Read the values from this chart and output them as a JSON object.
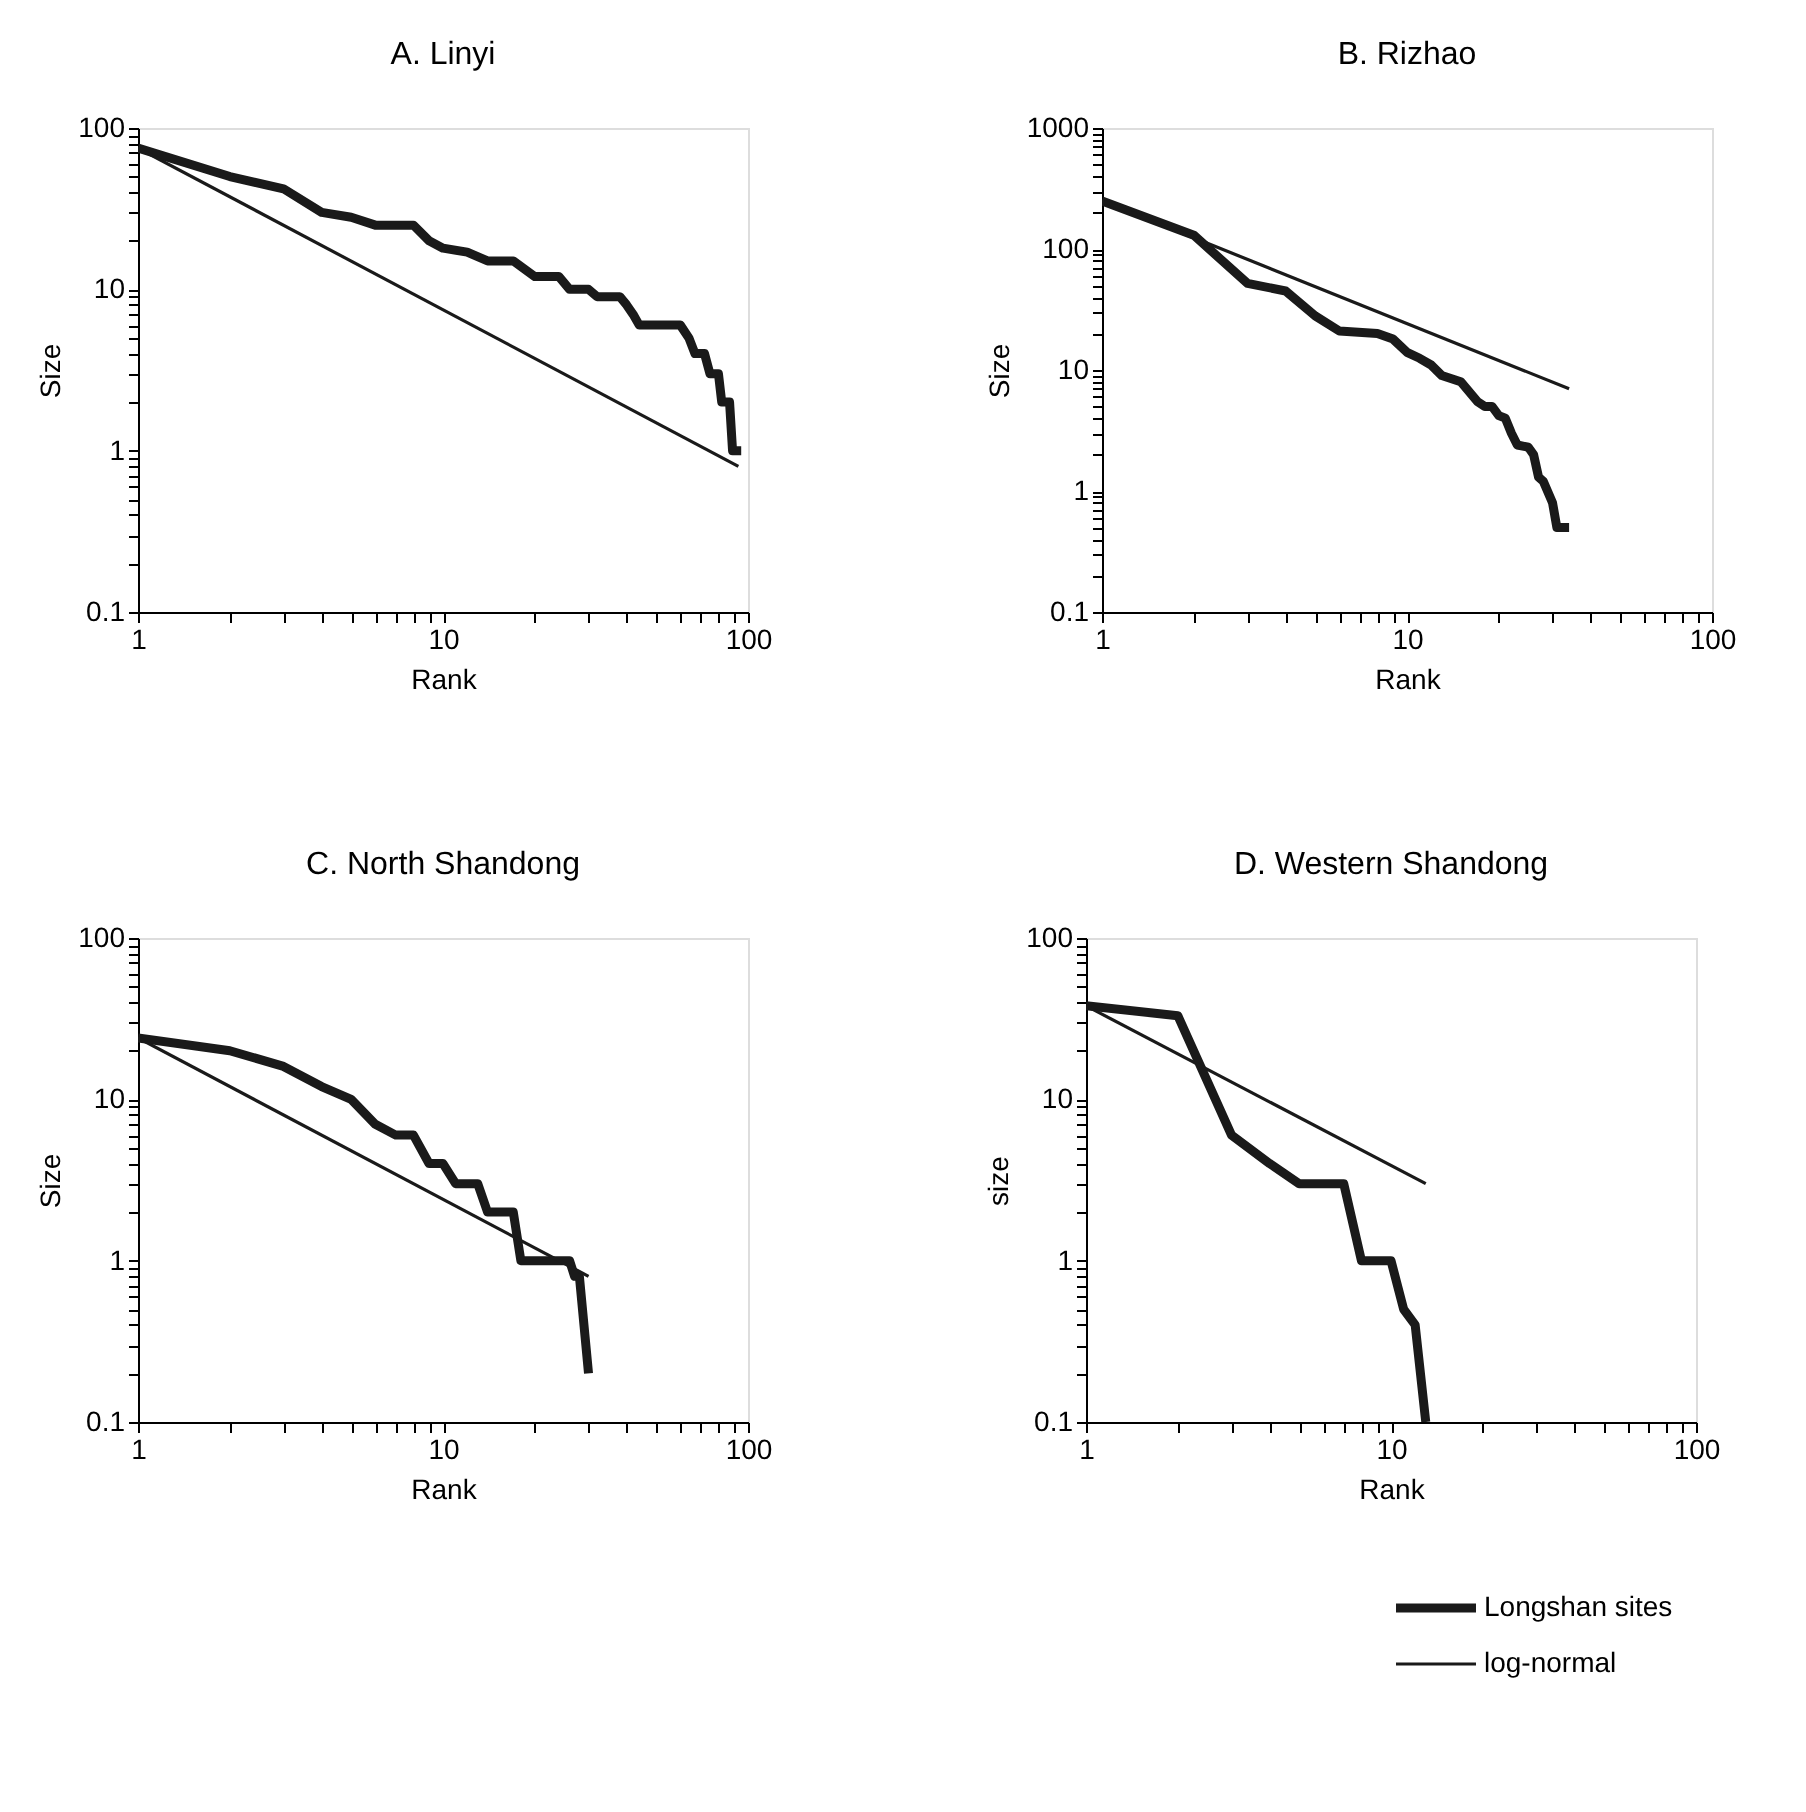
{
  "chart_data": [
    {
      "type": "line",
      "title": "A. Linyi",
      "xlabel": "Rank",
      "ylabel": "Size",
      "log": "xy",
      "xlim": [
        1,
        100
      ],
      "ylim": [
        0.1,
        100
      ],
      "xticks": [
        1,
        {
          "value": 2,
          "label": null
        },
        {
          "value": 3,
          "label": null
        },
        {
          "value": 4,
          "label": null
        },
        {
          "value": 5,
          "label": null
        },
        {
          "value": 6,
          "label": null
        },
        {
          "value": 7,
          "label": null
        },
        {
          "value": 8,
          "label": null
        },
        {
          "value": 9,
          "label": null
        },
        10,
        {
          "value": 20,
          "label": null
        },
        {
          "value": 30,
          "label": null
        },
        {
          "value": 40,
          "label": null
        },
        {
          "value": 50,
          "label": null
        },
        {
          "value": 60,
          "label": null
        },
        {
          "value": 70,
          "label": null
        },
        {
          "value": 80,
          "label": null
        },
        {
          "value": 90,
          "label": null
        },
        100
      ],
      "yticks": [
        0.1,
        {
          "value": 0.2,
          "label": null
        },
        {
          "value": 0.3,
          "label": null
        },
        {
          "value": 0.4,
          "label": null
        },
        {
          "value": 0.5,
          "label": null
        },
        {
          "value": 0.6,
          "label": null
        },
        {
          "value": 0.7,
          "label": null
        },
        {
          "value": 0.8,
          "label": null
        },
        {
          "value": 0.9,
          "label": null
        },
        1,
        {
          "value": 2,
          "label": null
        },
        {
          "value": 3,
          "label": null
        },
        {
          "value": 4,
          "label": null
        },
        {
          "value": 5,
          "label": null
        },
        {
          "value": 6,
          "label": null
        },
        {
          "value": 7,
          "label": null
        },
        {
          "value": 8,
          "label": null
        },
        {
          "value": 9,
          "label": null
        },
        10,
        {
          "value": 20,
          "label": null
        },
        {
          "value": 30,
          "label": null
        },
        {
          "value": 40,
          "label": null
        },
        {
          "value": 50,
          "label": null
        },
        {
          "value": 60,
          "label": null
        },
        {
          "value": 70,
          "label": null
        },
        {
          "value": 80,
          "label": null
        },
        {
          "value": 90,
          "label": null
        },
        100
      ],
      "series": [
        {
          "color": "#1a1a1a",
          "x": [
            1,
            2,
            3,
            4,
            5,
            6,
            8,
            9,
            10,
            12,
            14,
            17,
            20,
            24,
            26,
            30,
            32,
            38,
            40,
            42,
            44,
            60,
            64,
            67,
            72,
            75,
            80,
            82,
            87,
            89,
            95
          ],
          "values": [
            75,
            50,
            42,
            30,
            28,
            25,
            25,
            20,
            18,
            17,
            15,
            15,
            12,
            12,
            10,
            10,
            9,
            9,
            8,
            7,
            6,
            6,
            5,
            4,
            4,
            3,
            3,
            2,
            2,
            1,
            1
          ]
        },
        {
          "color": "#1a1a1a",
          "x": [
            1,
            93
          ],
          "values": [
            75,
            0.8
          ]
        }
      ]
    },
    {
      "type": "line",
      "title": "B. Rizhao",
      "xlabel": "Rank",
      "ylabel": "Size",
      "log": "xy",
      "xlim": [
        1,
        100
      ],
      "ylim": [
        0.1,
        1000
      ],
      "xticks": [
        1,
        {
          "value": 2,
          "label": null
        },
        {
          "value": 3,
          "label": null
        },
        {
          "value": 4,
          "label": null
        },
        {
          "value": 5,
          "label": null
        },
        {
          "value": 6,
          "label": null
        },
        {
          "value": 7,
          "label": null
        },
        {
          "value": 8,
          "label": null
        },
        {
          "value": 9,
          "label": null
        },
        10,
        {
          "value": 20,
          "label": null
        },
        {
          "value": 30,
          "label": null
        },
        {
          "value": 40,
          "label": null
        },
        {
          "value": 50,
          "label": null
        },
        {
          "value": 60,
          "label": null
        },
        {
          "value": 70,
          "label": null
        },
        {
          "value": 80,
          "label": null
        },
        {
          "value": 90,
          "label": null
        },
        100
      ],
      "yticks": [
        0.1,
        {
          "value": 0.2,
          "label": null
        },
        {
          "value": 0.3,
          "label": null
        },
        {
          "value": 0.4,
          "label": null
        },
        {
          "value": 0.5,
          "label": null
        },
        {
          "value": 0.6,
          "label": null
        },
        {
          "value": 0.7,
          "label": null
        },
        {
          "value": 0.8,
          "label": null
        },
        {
          "value": 0.9,
          "label": null
        },
        1,
        {
          "value": 2,
          "label": null
        },
        {
          "value": 3,
          "label": null
        },
        {
          "value": 4,
          "label": null
        },
        {
          "value": 5,
          "label": null
        },
        {
          "value": 6,
          "label": null
        },
        {
          "value": 7,
          "label": null
        },
        {
          "value": 8,
          "label": null
        },
        {
          "value": 9,
          "label": null
        },
        10,
        {
          "value": 20,
          "label": null
        },
        {
          "value": 30,
          "label": null
        },
        {
          "value": 40,
          "label": null
        },
        {
          "value": 50,
          "label": null
        },
        {
          "value": 60,
          "label": null
        },
        {
          "value": 70,
          "label": null
        },
        {
          "value": 80,
          "label": null
        },
        {
          "value": 90,
          "label": null
        },
        100,
        {
          "value": 200,
          "label": null
        },
        {
          "value": 300,
          "label": null
        },
        {
          "value": 400,
          "label": null
        },
        {
          "value": 500,
          "label": null
        },
        {
          "value": 600,
          "label": null
        },
        {
          "value": 700,
          "label": null
        },
        {
          "value": 800,
          "label": null
        },
        {
          "value": 900,
          "label": null
        },
        1000
      ],
      "series": [
        {
          "color": "#1a1a1a",
          "x": [
            1,
            2,
            3,
            4,
            5,
            6,
            8,
            9,
            10,
            11,
            12,
            13,
            15,
            17,
            18,
            19,
            20,
            21,
            22,
            23,
            25,
            26,
            27,
            28,
            30,
            31,
            34
          ],
          "values": [
            250,
            130,
            52,
            45,
            28,
            21,
            20,
            18,
            14,
            12.5,
            11,
            9,
            8,
            5.5,
            5,
            5,
            4.2,
            4,
            3,
            2.4,
            2.3,
            2,
            1.3,
            1.2,
            0.8,
            0.5,
            0.5
          ]
        },
        {
          "color": "#1a1a1a",
          "x": [
            1,
            34
          ],
          "values": [
            250,
            7
          ]
        }
      ]
    },
    {
      "type": "line",
      "title": "C. North Shandong",
      "xlabel": "Rank",
      "ylabel": "Size",
      "log": "xy",
      "xlim": [
        1,
        100
      ],
      "ylim": [
        0.1,
        100
      ],
      "xticks": [
        1,
        {
          "value": 2,
          "label": null
        },
        {
          "value": 3,
          "label": null
        },
        {
          "value": 4,
          "label": null
        },
        {
          "value": 5,
          "label": null
        },
        {
          "value": 6,
          "label": null
        },
        {
          "value": 7,
          "label": null
        },
        {
          "value": 8,
          "label": null
        },
        {
          "value": 9,
          "label": null
        },
        10,
        {
          "value": 20,
          "label": null
        },
        {
          "value": 30,
          "label": null
        },
        {
          "value": 40,
          "label": null
        },
        {
          "value": 50,
          "label": null
        },
        {
          "value": 60,
          "label": null
        },
        {
          "value": 70,
          "label": null
        },
        {
          "value": 80,
          "label": null
        },
        {
          "value": 90,
          "label": null
        },
        100
      ],
      "yticks": [
        0.1,
        {
          "value": 0.2,
          "label": null
        },
        {
          "value": 0.3,
          "label": null
        },
        {
          "value": 0.4,
          "label": null
        },
        {
          "value": 0.5,
          "label": null
        },
        {
          "value": 0.6,
          "label": null
        },
        {
          "value": 0.7,
          "label": null
        },
        {
          "value": 0.8,
          "label": null
        },
        {
          "value": 0.9,
          "label": null
        },
        1,
        {
          "value": 2,
          "label": null
        },
        {
          "value": 3,
          "label": null
        },
        {
          "value": 4,
          "label": null
        },
        {
          "value": 5,
          "label": null
        },
        {
          "value": 6,
          "label": null
        },
        {
          "value": 7,
          "label": null
        },
        {
          "value": 8,
          "label": null
        },
        {
          "value": 9,
          "label": null
        },
        10,
        {
          "value": 20,
          "label": null
        },
        {
          "value": 30,
          "label": null
        },
        {
          "value": 40,
          "label": null
        },
        {
          "value": 50,
          "label": null
        },
        {
          "value": 60,
          "label": null
        },
        {
          "value": 70,
          "label": null
        },
        {
          "value": 80,
          "label": null
        },
        {
          "value": 90,
          "label": null
        },
        100
      ],
      "series": [
        {
          "color": "#1a1a1a",
          "x": [
            1,
            2,
            3,
            4,
            5,
            6,
            7,
            8,
            9,
            10,
            11,
            13,
            14,
            17,
            18,
            26,
            27,
            28,
            30
          ],
          "values": [
            24,
            20,
            16,
            12,
            10,
            7,
            6,
            6,
            4,
            4,
            3,
            3,
            2,
            2,
            1,
            1,
            0.8,
            0.8,
            0.2
          ]
        },
        {
          "color": "#1a1a1a",
          "x": [
            1,
            30
          ],
          "values": [
            24,
            0.8
          ]
        }
      ]
    },
    {
      "type": "line",
      "title": "D. Western Shandong",
      "xlabel": "Rank",
      "ylabel": "size",
      "log": "xy",
      "xlim": [
        1,
        100
      ],
      "ylim": [
        0.1,
        100
      ],
      "legend": "bottom right",
      "xticks": [
        1,
        {
          "value": 2,
          "label": null
        },
        {
          "value": 3,
          "label": null
        },
        {
          "value": 4,
          "label": null
        },
        {
          "value": 5,
          "label": null
        },
        {
          "value": 6,
          "label": null
        },
        {
          "value": 7,
          "label": null
        },
        {
          "value": 8,
          "label": null
        },
        {
          "value": 9,
          "label": null
        },
        10,
        {
          "value": 20,
          "label": null
        },
        {
          "value": 30,
          "label": null
        },
        {
          "value": 40,
          "label": null
        },
        {
          "value": 50,
          "label": null
        },
        {
          "value": 60,
          "label": null
        },
        {
          "value": 70,
          "label": null
        },
        {
          "value": 80,
          "label": null
        },
        {
          "value": 90,
          "label": null
        },
        100
      ],
      "yticks": [
        0.1,
        {
          "value": 0.2,
          "label": null
        },
        {
          "value": 0.3,
          "label": null
        },
        {
          "value": 0.4,
          "label": null
        },
        {
          "value": 0.5,
          "label": null
        },
        {
          "value": 0.6,
          "label": null
        },
        {
          "value": 0.7,
          "label": null
        },
        {
          "value": 0.8,
          "label": null
        },
        {
          "value": 0.9,
          "label": null
        },
        1,
        {
          "value": 2,
          "label": null
        },
        {
          "value": 3,
          "label": null
        },
        {
          "value": 4,
          "label": null
        },
        {
          "value": 5,
          "label": null
        },
        {
          "value": 6,
          "label": null
        },
        {
          "value": 7,
          "label": null
        },
        {
          "value": 8,
          "label": null
        },
        {
          "value": 9,
          "label": null
        },
        10,
        {
          "value": 20,
          "label": null
        },
        {
          "value": 30,
          "label": null
        },
        {
          "value": 40,
          "label": null
        },
        {
          "value": 50,
          "label": null
        },
        {
          "value": 60,
          "label": null
        },
        {
          "value": 70,
          "label": null
        },
        {
          "value": 80,
          "label": null
        },
        {
          "value": 90,
          "label": null
        },
        100
      ],
      "series": [
        {
          "name": "Longshan sites",
          "color": "#1a1a1a",
          "x": [
            1,
            2,
            3,
            4,
            5,
            7,
            8,
            10,
            11,
            12,
            13
          ],
          "values": [
            38,
            33,
            6,
            4,
            3,
            3,
            1,
            1,
            0.5,
            0.4,
            0.1
          ]
        },
        {
          "name": "log-normal",
          "color": "#1a1a1a",
          "x": [
            1,
            13
          ],
          "values": [
            38,
            3
          ]
        }
      ]
    }
  ]
}
